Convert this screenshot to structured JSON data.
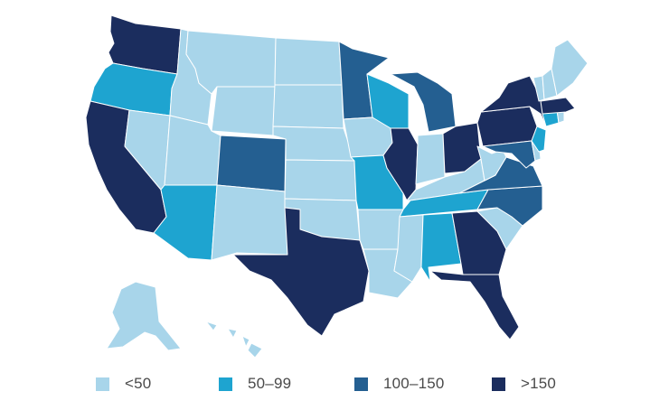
{
  "colors": {
    "lt50": "#a8d5ea",
    "r50_99": "#1ea4d0",
    "r100_150": "#245f91",
    "gt150": "#1b2d5e",
    "border": "#ffffff"
  },
  "legend": [
    {
      "label": "<50",
      "color": "#a8d5ea"
    },
    {
      "label": "50–99",
      "color": "#1ea4d0"
    },
    {
      "label": "100–150",
      "color": "#245f91"
    },
    {
      "label": ">150",
      "color": "#1b2d5e"
    }
  ],
  "states": {
    "WA": "gt150",
    "OR": "r50_99",
    "CA": "gt150",
    "NV": "lt50",
    "ID": "lt50",
    "MT": "lt50",
    "WY": "lt50",
    "UT": "lt50",
    "AZ": "r50_99",
    "CO": "r100_150",
    "NM": "lt50",
    "ND": "lt50",
    "SD": "lt50",
    "NE": "lt50",
    "KS": "lt50",
    "OK": "lt50",
    "TX": "gt150",
    "MN": "r100_150",
    "IA": "lt50",
    "MO": "r50_99",
    "AR": "lt50",
    "LA": "lt50",
    "WI": "r50_99",
    "IL": "gt150",
    "MI": "r100_150",
    "IN": "lt50",
    "OH": "gt150",
    "KY": "lt50",
    "TN": "r50_99",
    "MS": "lt50",
    "AL": "r50_99",
    "GA": "gt150",
    "FL": "gt150",
    "SC": "lt50",
    "NC": "r100_150",
    "VA": "r100_150",
    "WV": "lt50",
    "PA": "gt150",
    "NY": "gt150",
    "MD": "r100_150",
    "DE": "lt50",
    "NJ": "r50_99",
    "CT": "r50_99",
    "RI": "lt50",
    "MA": "gt150",
    "VT": "lt50",
    "NH": "lt50",
    "ME": "lt50",
    "AK": "lt50",
    "HI": "lt50"
  }
}
